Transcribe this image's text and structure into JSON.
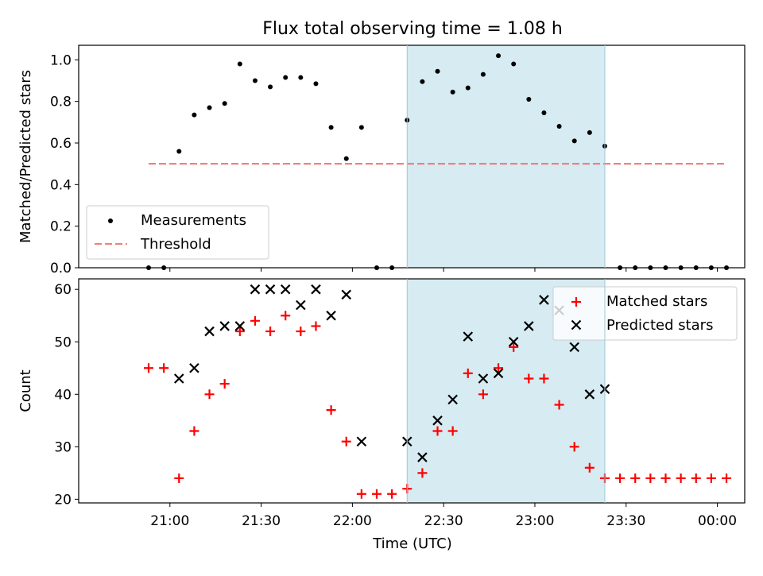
{
  "chart_data": [
    {
      "type": "scatter",
      "title": "Flux total observing time = 1.08 h",
      "xlabel": "",
      "ylabel": "Matched/Predicted stars",
      "ylim": [
        0,
        1.07
      ],
      "yticks": [
        "0.0",
        "0.2",
        "0.4",
        "0.6",
        "0.8",
        "1.0"
      ],
      "ytick_values": [
        0,
        0.2,
        0.4,
        0.6,
        0.8,
        1.0
      ],
      "xlim_minutes_after_midnight": [
        1230,
        1449
      ],
      "shaded_span": [
        "22:18",
        "23:23"
      ],
      "shade_color": "#add8e6",
      "legend": {
        "position": "lower-left",
        "entries": [
          {
            "label": "Measurements",
            "marker": "dot",
            "color": "#000000"
          },
          {
            "label": "Threshold",
            "marker": "dashed-line",
            "color": "#f08080"
          }
        ]
      },
      "threshold": {
        "y": 0.5,
        "x_start": "20:53",
        "x_end": "00:03",
        "color": "#f08080"
      },
      "series": [
        {
          "name": "Measurements",
          "color": "#000000",
          "x": [
            "20:53",
            "20:58",
            "21:03",
            "21:08",
            "21:13",
            "21:18",
            "21:23",
            "21:28",
            "21:33",
            "21:38",
            "21:43",
            "21:48",
            "21:53",
            "21:58",
            "22:03",
            "22:08",
            "22:13",
            "22:18",
            "22:23",
            "22:28",
            "22:33",
            "22:38",
            "22:43",
            "22:48",
            "22:53",
            "22:58",
            "23:03",
            "23:08",
            "23:13",
            "23:18",
            "23:23",
            "23:28",
            "23:33",
            "23:38",
            "23:43",
            "23:48",
            "23:53",
            "23:58",
            "00:03"
          ],
          "y": [
            0.0,
            0.0,
            0.56,
            0.735,
            0.77,
            0.79,
            0.98,
            0.9,
            0.87,
            0.915,
            0.915,
            0.885,
            0.675,
            0.525,
            0.675,
            0.0,
            0.0,
            0.71,
            0.895,
            0.945,
            0.845,
            0.865,
            0.93,
            1.02,
            0.98,
            0.81,
            0.745,
            0.68,
            0.61,
            0.65,
            0.585,
            0.0,
            0.0,
            0.0,
            0.0,
            0.0,
            0.0,
            0.0,
            0.0
          ]
        }
      ]
    },
    {
      "type": "scatter",
      "title": "",
      "xlabel": "Time (UTC)",
      "ylabel": "Count",
      "ylim": [
        19.3,
        62
      ],
      "yticks": [
        "20",
        "30",
        "40",
        "50",
        "60"
      ],
      "ytick_values": [
        20,
        30,
        40,
        50,
        60
      ],
      "xticks": [
        "21:00",
        "21:30",
        "22:00",
        "22:30",
        "23:00",
        "23:30",
        "00:00"
      ],
      "xtick_values_minutes_after_midnight": [
        1260,
        1290,
        1320,
        1350,
        1380,
        1410,
        1440
      ],
      "xlim_minutes_after_midnight": [
        1230,
        1449
      ],
      "shaded_span": [
        "22:18",
        "23:23"
      ],
      "shade_color": "#add8e6",
      "legend": {
        "position": "upper-right",
        "entries": [
          {
            "label": "Matched stars",
            "marker": "plus",
            "color": "#ff0000"
          },
          {
            "label": "Predicted stars",
            "marker": "x",
            "color": "#000000"
          }
        ]
      },
      "series": [
        {
          "name": "Matched stars",
          "marker": "plus",
          "color": "#ff0000",
          "x": [
            "20:53",
            "20:58",
            "21:03",
            "21:08",
            "21:13",
            "21:18",
            "21:23",
            "21:28",
            "21:33",
            "21:38",
            "21:43",
            "21:48",
            "21:53",
            "21:58",
            "22:03",
            "22:08",
            "22:13",
            "22:18",
            "22:23",
            "22:28",
            "22:33",
            "22:38",
            "22:43",
            "22:48",
            "22:53",
            "22:58",
            "23:03",
            "23:08",
            "23:13",
            "23:18",
            "23:23",
            "23:28",
            "23:33",
            "23:38",
            "23:43",
            "23:48",
            "23:53",
            "23:58",
            "00:03"
          ],
          "y": [
            45,
            45,
            24,
            33,
            40,
            42,
            52,
            54,
            52,
            55,
            52,
            53,
            37,
            31,
            21,
            21,
            21,
            22,
            25,
            33,
            33,
            44,
            40,
            45,
            49,
            43,
            43,
            38,
            30,
            26,
            24,
            24,
            24,
            24,
            24,
            24,
            24,
            24,
            24
          ]
        },
        {
          "name": "Predicted stars",
          "marker": "x",
          "color": "#000000",
          "x": [
            "21:03",
            "21:08",
            "21:13",
            "21:18",
            "21:23",
            "21:28",
            "21:33",
            "21:38",
            "21:43",
            "21:48",
            "21:53",
            "21:58",
            "22:03",
            "22:18",
            "22:23",
            "22:28",
            "22:33",
            "22:38",
            "22:43",
            "22:48",
            "22:53",
            "22:58",
            "23:03",
            "23:08",
            "23:13",
            "23:18",
            "23:23"
          ],
          "y": [
            43,
            45,
            52,
            53,
            53,
            60,
            60,
            60,
            57,
            60,
            55,
            59,
            31,
            31,
            28,
            35,
            39,
            51,
            43,
            44,
            50,
            53,
            58,
            56,
            49,
            40,
            41
          ]
        }
      ]
    }
  ]
}
